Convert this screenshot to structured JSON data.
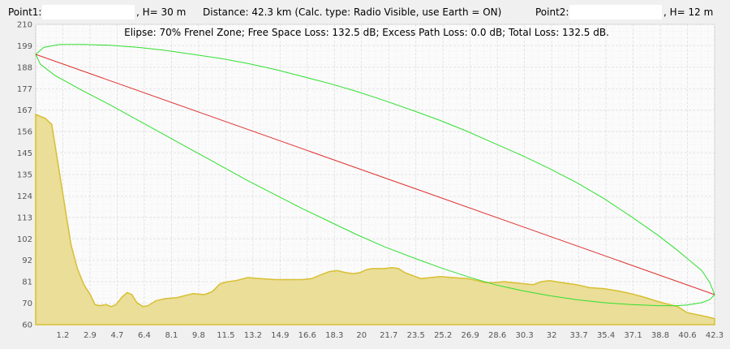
{
  "header": {
    "point1_label": "Point1:",
    "point1_value": "",
    "point1_height": ", H= 30 m",
    "distance_info": "Distance: 42.3 km (Calc. type: Radio Visible, use Earth = ON)",
    "point2_label": "Point2:",
    "point2_value": "",
    "point2_height": ", H= 12 m"
  },
  "summary": "Elipse: 70% Frenel Zone;  Free Space Loss: 132.5 dB;  Excess Path Loss: 0.0 dB;   Total Loss: 132.5 dB.",
  "colors": {
    "terrain_fill": "#e9dc92",
    "terrain_line": "#d8bf32",
    "los_line": "#e03030",
    "fresnel": "#30e030",
    "grid": "#dcdcdc",
    "plot_bg": "#fbfbfb"
  },
  "chart_data": {
    "type": "area",
    "x_ticks": [
      "1.2",
      "2.9",
      "4.7",
      "6.4",
      "8.1",
      "9.8",
      "11.5",
      "13.2",
      "14.9",
      "16.6",
      "18.3",
      "20",
      "21.7",
      "23.5",
      "25.2",
      "26.9",
      "28.6",
      "30.3",
      "32",
      "33.7",
      "35.4",
      "37.1",
      "38.8",
      "40.6",
      "42.3"
    ],
    "y_ticks": [
      "60",
      "70",
      "81",
      "92",
      "102",
      "113",
      "124",
      "135",
      "145",
      "156",
      "167",
      "177",
      "188",
      "199",
      "210"
    ],
    "xlim": [
      0,
      42.3
    ],
    "ylim": [
      60,
      210
    ],
    "terrain": [
      [
        0,
        165
      ],
      [
        0.6,
        163
      ],
      [
        1.0,
        160
      ],
      [
        1.4,
        140
      ],
      [
        1.8,
        120
      ],
      [
        2.2,
        100
      ],
      [
        2.6,
        88
      ],
      [
        3.0,
        80
      ],
      [
        3.4,
        75
      ],
      [
        3.7,
        70
      ],
      [
        4.0,
        69.5
      ],
      [
        4.4,
        70
      ],
      [
        4.7,
        69
      ],
      [
        5.0,
        70
      ],
      [
        5.4,
        74
      ],
      [
        5.7,
        76
      ],
      [
        6.0,
        75
      ],
      [
        6.3,
        71
      ],
      [
        6.7,
        69
      ],
      [
        7.0,
        69.5
      ],
      [
        7.5,
        72
      ],
      [
        8.1,
        73
      ],
      [
        8.8,
        73.5
      ],
      [
        9.3,
        74.5
      ],
      [
        9.8,
        75.5
      ],
      [
        10.5,
        75
      ],
      [
        11.0,
        76.5
      ],
      [
        11.5,
        80.5
      ],
      [
        12.0,
        81.5
      ],
      [
        12.5,
        82
      ],
      [
        13.2,
        83.5
      ],
      [
        14.0,
        83
      ],
      [
        14.9,
        82.5
      ],
      [
        15.5,
        82.5
      ],
      [
        16.0,
        82.5
      ],
      [
        16.6,
        82.5
      ],
      [
        17.2,
        83
      ],
      [
        17.8,
        85
      ],
      [
        18.3,
        86.5
      ],
      [
        18.8,
        87
      ],
      [
        19.3,
        86
      ],
      [
        19.8,
        85.5
      ],
      [
        20.2,
        86
      ],
      [
        20.6,
        87.5
      ],
      [
        21.0,
        88
      ],
      [
        21.7,
        88
      ],
      [
        22.2,
        88.5
      ],
      [
        22.6,
        88
      ],
      [
        23.0,
        86
      ],
      [
        23.5,
        84.5
      ],
      [
        24.0,
        83
      ],
      [
        24.6,
        83.5
      ],
      [
        25.2,
        84
      ],
      [
        26.0,
        83.5
      ],
      [
        26.9,
        83
      ],
      [
        27.5,
        82
      ],
      [
        28.0,
        81
      ],
      [
        28.6,
        81
      ],
      [
        29.2,
        81.5
      ],
      [
        29.7,
        81
      ],
      [
        30.3,
        80.5
      ],
      [
        31.0,
        80
      ],
      [
        31.5,
        81.5
      ],
      [
        32.0,
        82
      ],
      [
        32.8,
        81
      ],
      [
        33.7,
        80
      ],
      [
        34.5,
        78.5
      ],
      [
        35.4,
        78
      ],
      [
        36.2,
        77
      ],
      [
        37.1,
        75.5
      ],
      [
        37.8,
        74
      ],
      [
        38.8,
        71.5
      ],
      [
        39.5,
        70
      ],
      [
        40.0,
        69
      ],
      [
        40.6,
        66
      ],
      [
        41.2,
        65
      ],
      [
        41.8,
        64
      ],
      [
        42.3,
        63
      ]
    ],
    "line_of_sight": [
      [
        0,
        195
      ],
      [
        42.3,
        75
      ]
    ],
    "fresnel_upper": [
      [
        0,
        195
      ],
      [
        0.5,
        198.5
      ],
      [
        1.5,
        200
      ],
      [
        3,
        200
      ],
      [
        4.7,
        199.5
      ],
      [
        6.4,
        198.5
      ],
      [
        8.1,
        197
      ],
      [
        9.8,
        195
      ],
      [
        11.5,
        193
      ],
      [
        13.2,
        190.5
      ],
      [
        14.9,
        187.5
      ],
      [
        16.6,
        184
      ],
      [
        18.3,
        180.5
      ],
      [
        20,
        176.5
      ],
      [
        21.7,
        172
      ],
      [
        23.5,
        167
      ],
      [
        25.2,
        162
      ],
      [
        26.9,
        156.5
      ],
      [
        28.6,
        150.5
      ],
      [
        30.3,
        144.5
      ],
      [
        32,
        138
      ],
      [
        33.7,
        131
      ],
      [
        35.4,
        123
      ],
      [
        37.1,
        114
      ],
      [
        38.8,
        104.5
      ],
      [
        40,
        97
      ],
      [
        40.6,
        93
      ],
      [
        41.5,
        87
      ],
      [
        42.0,
        81
      ],
      [
        42.3,
        75
      ]
    ],
    "fresnel_lower": [
      [
        0,
        195
      ],
      [
        0.3,
        190
      ],
      [
        1.2,
        184.5
      ],
      [
        2.9,
        177
      ],
      [
        4.7,
        169.5
      ],
      [
        6.4,
        162
      ],
      [
        8.1,
        154.5
      ],
      [
        9.8,
        147
      ],
      [
        11.5,
        139.5
      ],
      [
        13.2,
        132
      ],
      [
        14.9,
        125
      ],
      [
        16.6,
        118
      ],
      [
        18.3,
        111.5
      ],
      [
        20,
        105
      ],
      [
        21.7,
        99
      ],
      [
        23.5,
        93.5
      ],
      [
        25.2,
        88.5
      ],
      [
        26.9,
        84
      ],
      [
        28.6,
        80
      ],
      [
        30.3,
        77
      ],
      [
        32,
        74.5
      ],
      [
        33.7,
        72.5
      ],
      [
        35.4,
        71
      ],
      [
        37.1,
        70
      ],
      [
        38.8,
        69.5
      ],
      [
        40,
        69.5
      ],
      [
        40.6,
        69.8
      ],
      [
        41.5,
        71
      ],
      [
        42.0,
        72.5
      ],
      [
        42.3,
        75
      ]
    ]
  }
}
